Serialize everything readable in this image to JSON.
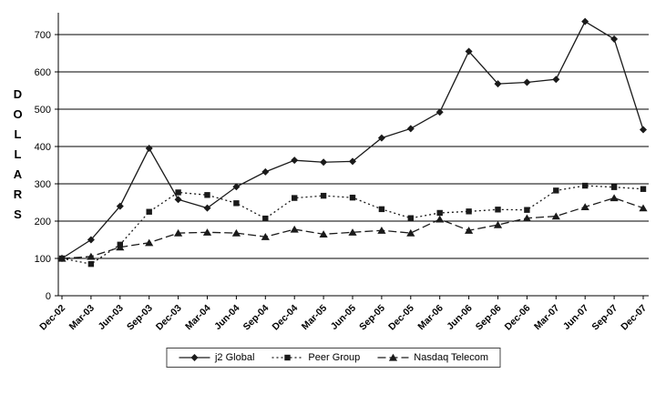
{
  "chart_data": {
    "type": "line",
    "title": "",
    "xlabel": "",
    "ylabel": "DOLLARS",
    "ylim": [
      0,
      700
    ],
    "ytick_step": 100,
    "yticks": [
      0,
      100,
      200,
      300,
      400,
      500,
      600,
      700
    ],
    "grid": true,
    "legend_position": "bottom",
    "categories": [
      "Dec-02",
      "Mar-03",
      "Jun-03",
      "Sep-03",
      "Dec-03",
      "Mar-04",
      "Jun-04",
      "Sep-04",
      "Dec-04",
      "Mar-05",
      "Jun-05",
      "Sep-05",
      "Dec-05",
      "Mar-06",
      "Jun-06",
      "Sep-06",
      "Dec-06",
      "Mar-07",
      "Jun-07",
      "Sep-07",
      "Dec-07"
    ],
    "series": [
      {
        "name": "j2 Global",
        "marker": "diamond",
        "line_style": "solid",
        "values": [
          100,
          150,
          240,
          395,
          258,
          235,
          292,
          332,
          363,
          358,
          360,
          423,
          448,
          492,
          655,
          568,
          572,
          580,
          735,
          688,
          445
        ]
      },
      {
        "name": "Peer Group",
        "marker": "square",
        "line_style": "dotted",
        "values": [
          100,
          85,
          137,
          225,
          277,
          270,
          248,
          207,
          262,
          268,
          263,
          232,
          208,
          222,
          226,
          231,
          230,
          282,
          295,
          291,
          286
        ]
      },
      {
        "name": "Nasdaq Telecom",
        "marker": "triangle",
        "line_style": "dashed",
        "values": [
          100,
          105,
          130,
          142,
          168,
          170,
          168,
          158,
          178,
          165,
          170,
          175,
          168,
          205,
          175,
          190,
          208,
          213,
          238,
          262,
          235
        ]
      }
    ]
  },
  "colors": {
    "line": "#1a1a1a",
    "grid": "#000000",
    "background": "#ffffff",
    "legend_border": "#444444"
  }
}
